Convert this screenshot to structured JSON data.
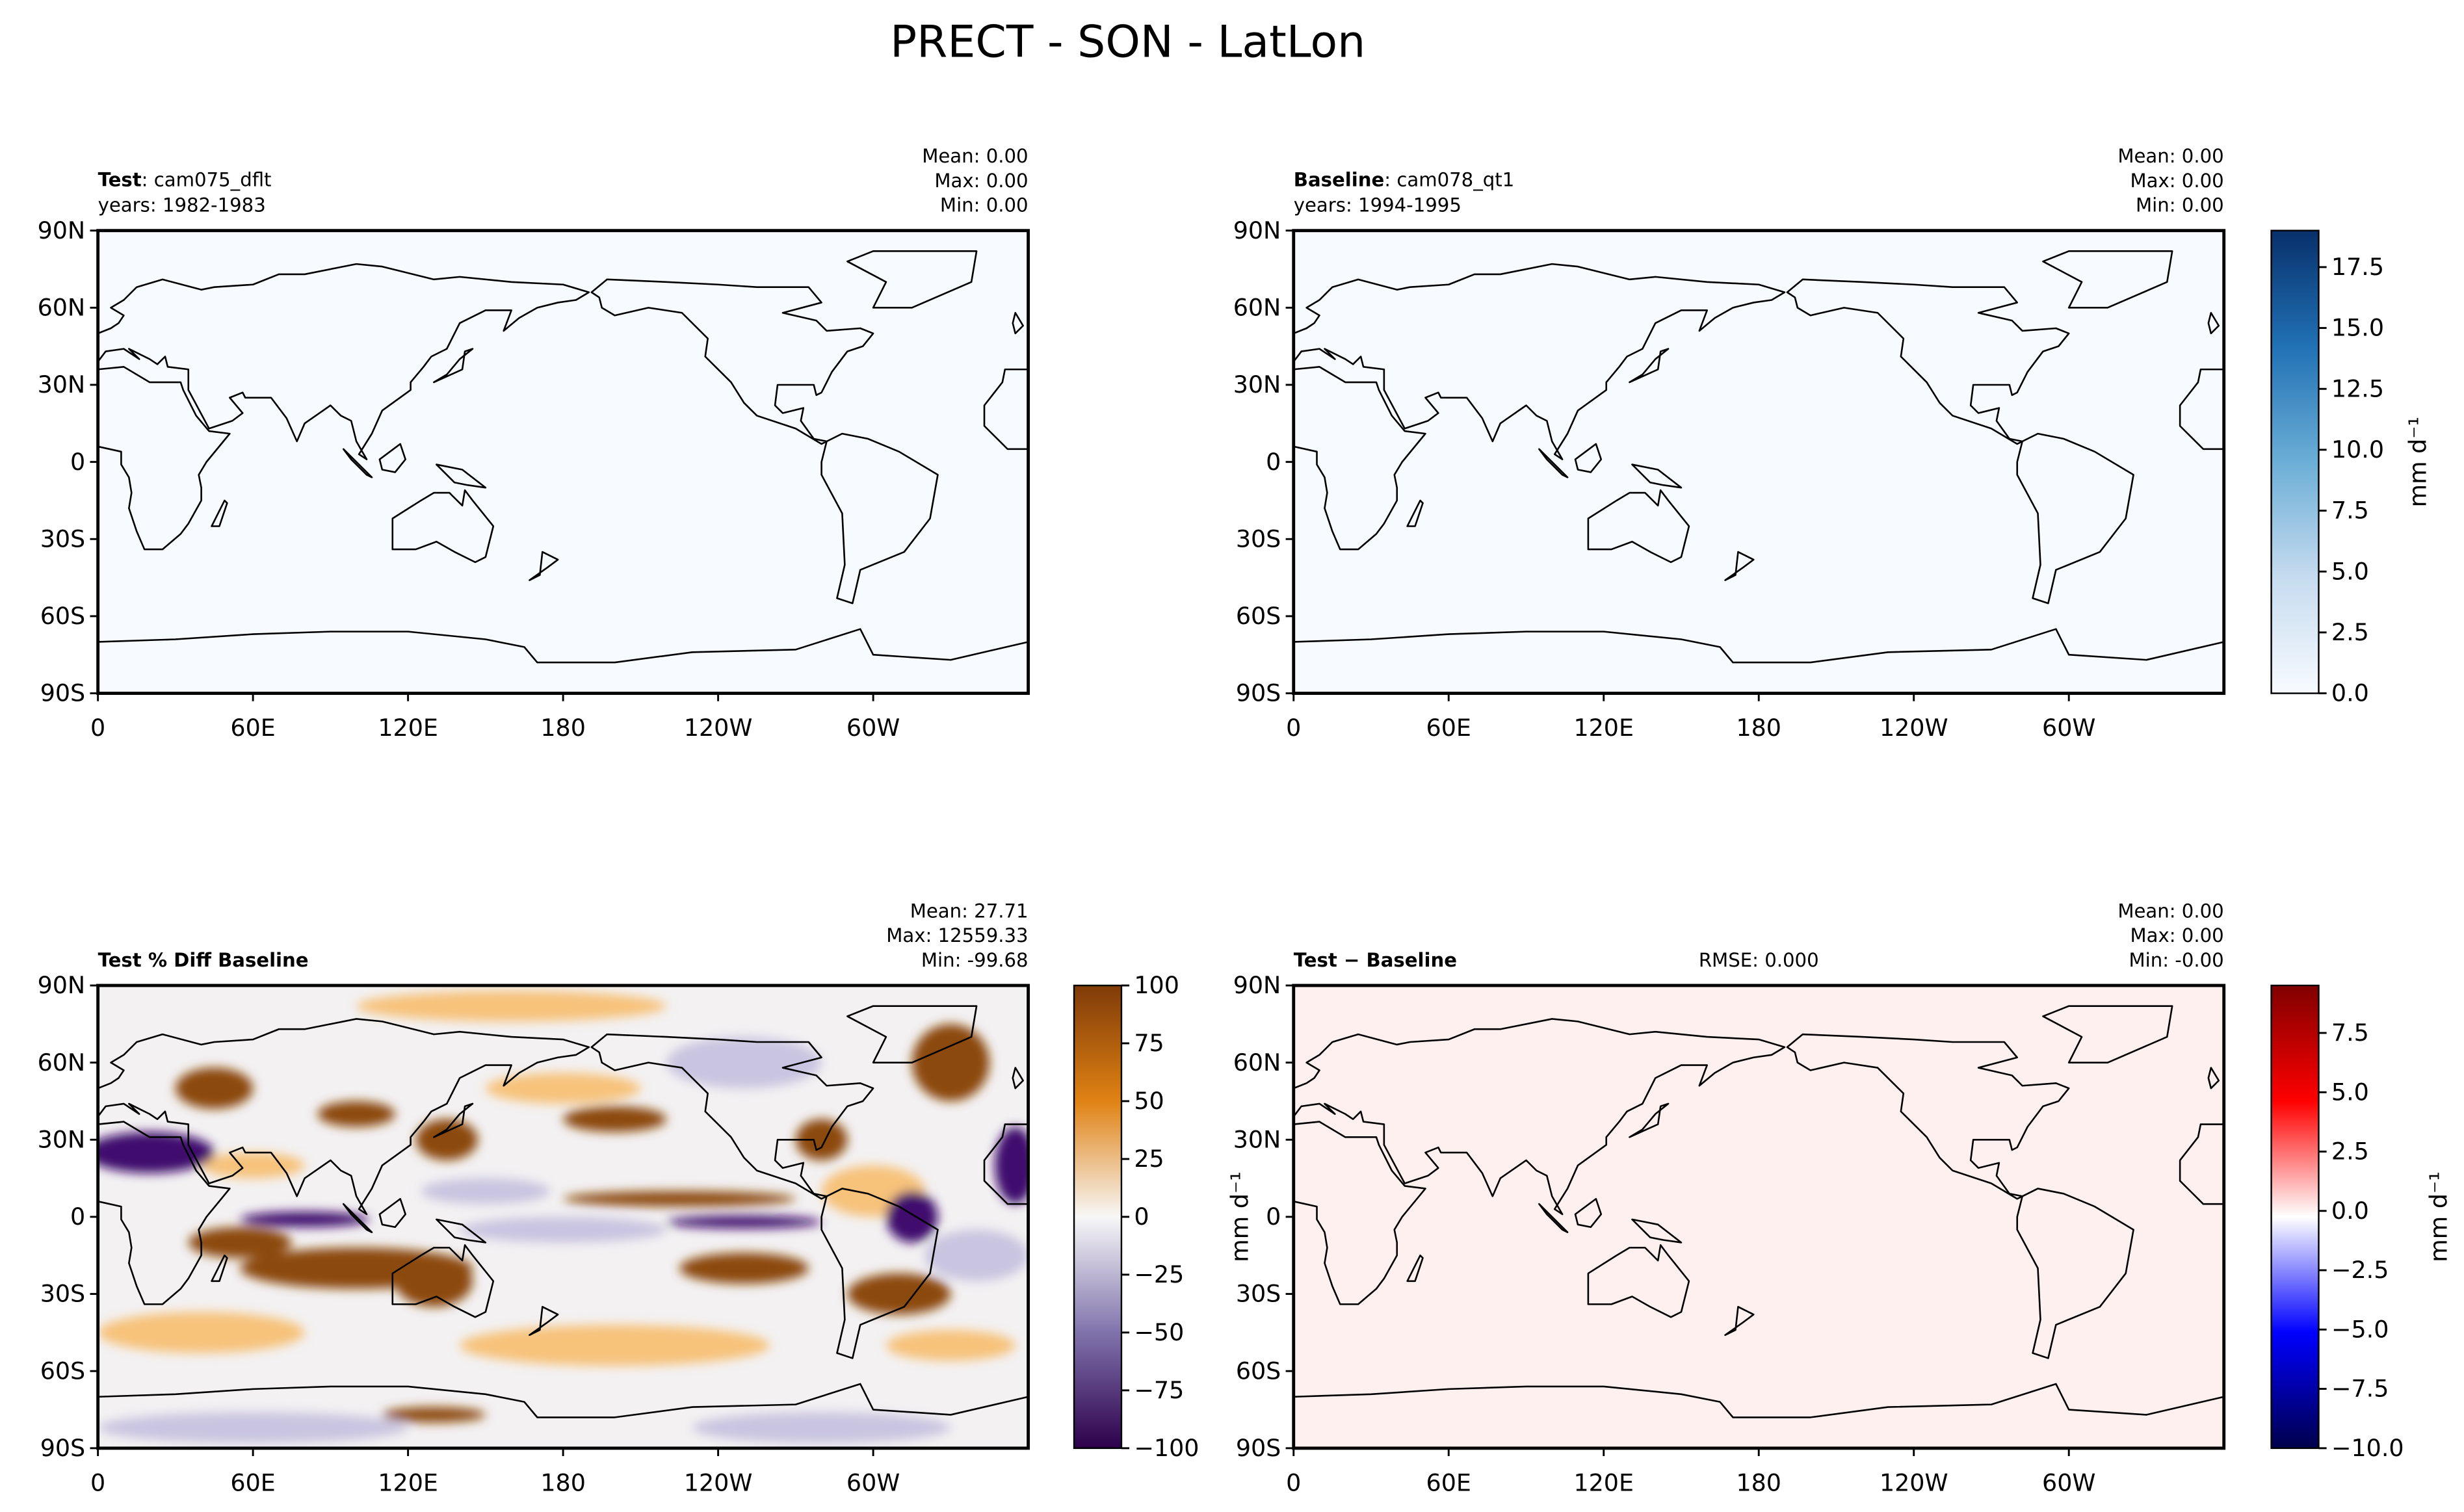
{
  "title": "PRECT - SON - LatLon",
  "xlim": [
    0,
    360
  ],
  "ylim": [
    -90,
    90
  ],
  "xticks": [
    0,
    {
      "value": 60,
      "label": "60E"
    },
    {
      "value": 120,
      "label": "120E"
    },
    180,
    {
      "value": 240,
      "label": "120W"
    },
    {
      "value": 300,
      "label": "60W"
    }
  ],
  "yticks": [
    {
      "value": 90,
      "label": "90N"
    },
    {
      "value": 60,
      "label": "60N"
    },
    {
      "value": 30,
      "label": "30N"
    },
    0,
    {
      "value": -30,
      "label": "30S"
    },
    {
      "value": -60,
      "label": "60S"
    },
    {
      "value": -90,
      "label": "90S"
    }
  ],
  "panels": [
    {
      "title_bold": "Test",
      "title_rest": ": cam075_dflt",
      "years": "years: 1982-1983",
      "stats": [
        "Mean:  0.00",
        "Max:  0.00",
        "Min:  0.00"
      ],
      "fill": "#f7fbff"
    },
    {
      "title_bold": "Baseline",
      "title_rest": ": cam078_qt1",
      "years": "years: 1994-1995",
      "stats": [
        "Mean:  0.00",
        "Max:  0.00",
        "Min:  0.00"
      ],
      "fill": "#f7fbff",
      "colorbar": {
        "label": "mm d⁻¹",
        "lim": [
          0,
          19
        ],
        "colors": [
          "#f7fbff",
          "#c6dbef",
          "#6baed6",
          "#2171b5",
          "#08306b"
        ],
        "ticks": [
          {
            "value": 0,
            "label": "0.0"
          },
          2.5,
          {
            "value": 5,
            "label": "5.0"
          },
          7.5,
          {
            "value": 10,
            "label": "10.0"
          },
          12.5,
          {
            "value": 15,
            "label": "15.0"
          },
          17.5
        ]
      }
    },
    {
      "title_bold": "Test % Diff Baseline",
      "stats": [
        "Mean: 27.71",
        "Max: 12559.33",
        "Min: -99.68"
      ],
      "fill": "#f3f1f2",
      "colorbar": {
        "label": "mm d⁻¹",
        "lim": [
          -100,
          100
        ],
        "colors": [
          "#2d004b",
          "#8073ac",
          "#f7f7f7",
          "#e08214",
          "#7f3b08"
        ],
        "ticks": [
          {
            "value": -100,
            "label": "−100"
          },
          {
            "value": -75,
            "label": "−75"
          },
          {
            "value": -50,
            "label": "−50"
          },
          {
            "value": -25,
            "label": "−25"
          },
          0,
          25,
          50,
          75,
          100
        ]
      }
    },
    {
      "title_bold": "Test − Baseline",
      "rmse": "RMSE: 0.000",
      "stats": [
        "Mean:  0.00",
        "Max:  0.00",
        "Min: -0.00"
      ],
      "fill": "#fff0f0",
      "colorbar": {
        "label": "mm d⁻¹",
        "lim": [
          -10,
          9.5
        ],
        "colors": [
          "#00004c",
          "#0000ff",
          "#ffffff",
          "#ff0000",
          "#800000"
        ],
        "ticks": [
          {
            "value": -10,
            "label": "−10.0"
          },
          {
            "value": -7.5,
            "label": "−7.5"
          },
          {
            "value": -5,
            "label": "−5.0"
          },
          {
            "value": -2.5,
            "label": "−2.5"
          },
          {
            "value": 0,
            "label": "0.0"
          },
          2.5,
          {
            "value": 5,
            "label": "5.0"
          },
          7.5
        ]
      }
    }
  ]
}
